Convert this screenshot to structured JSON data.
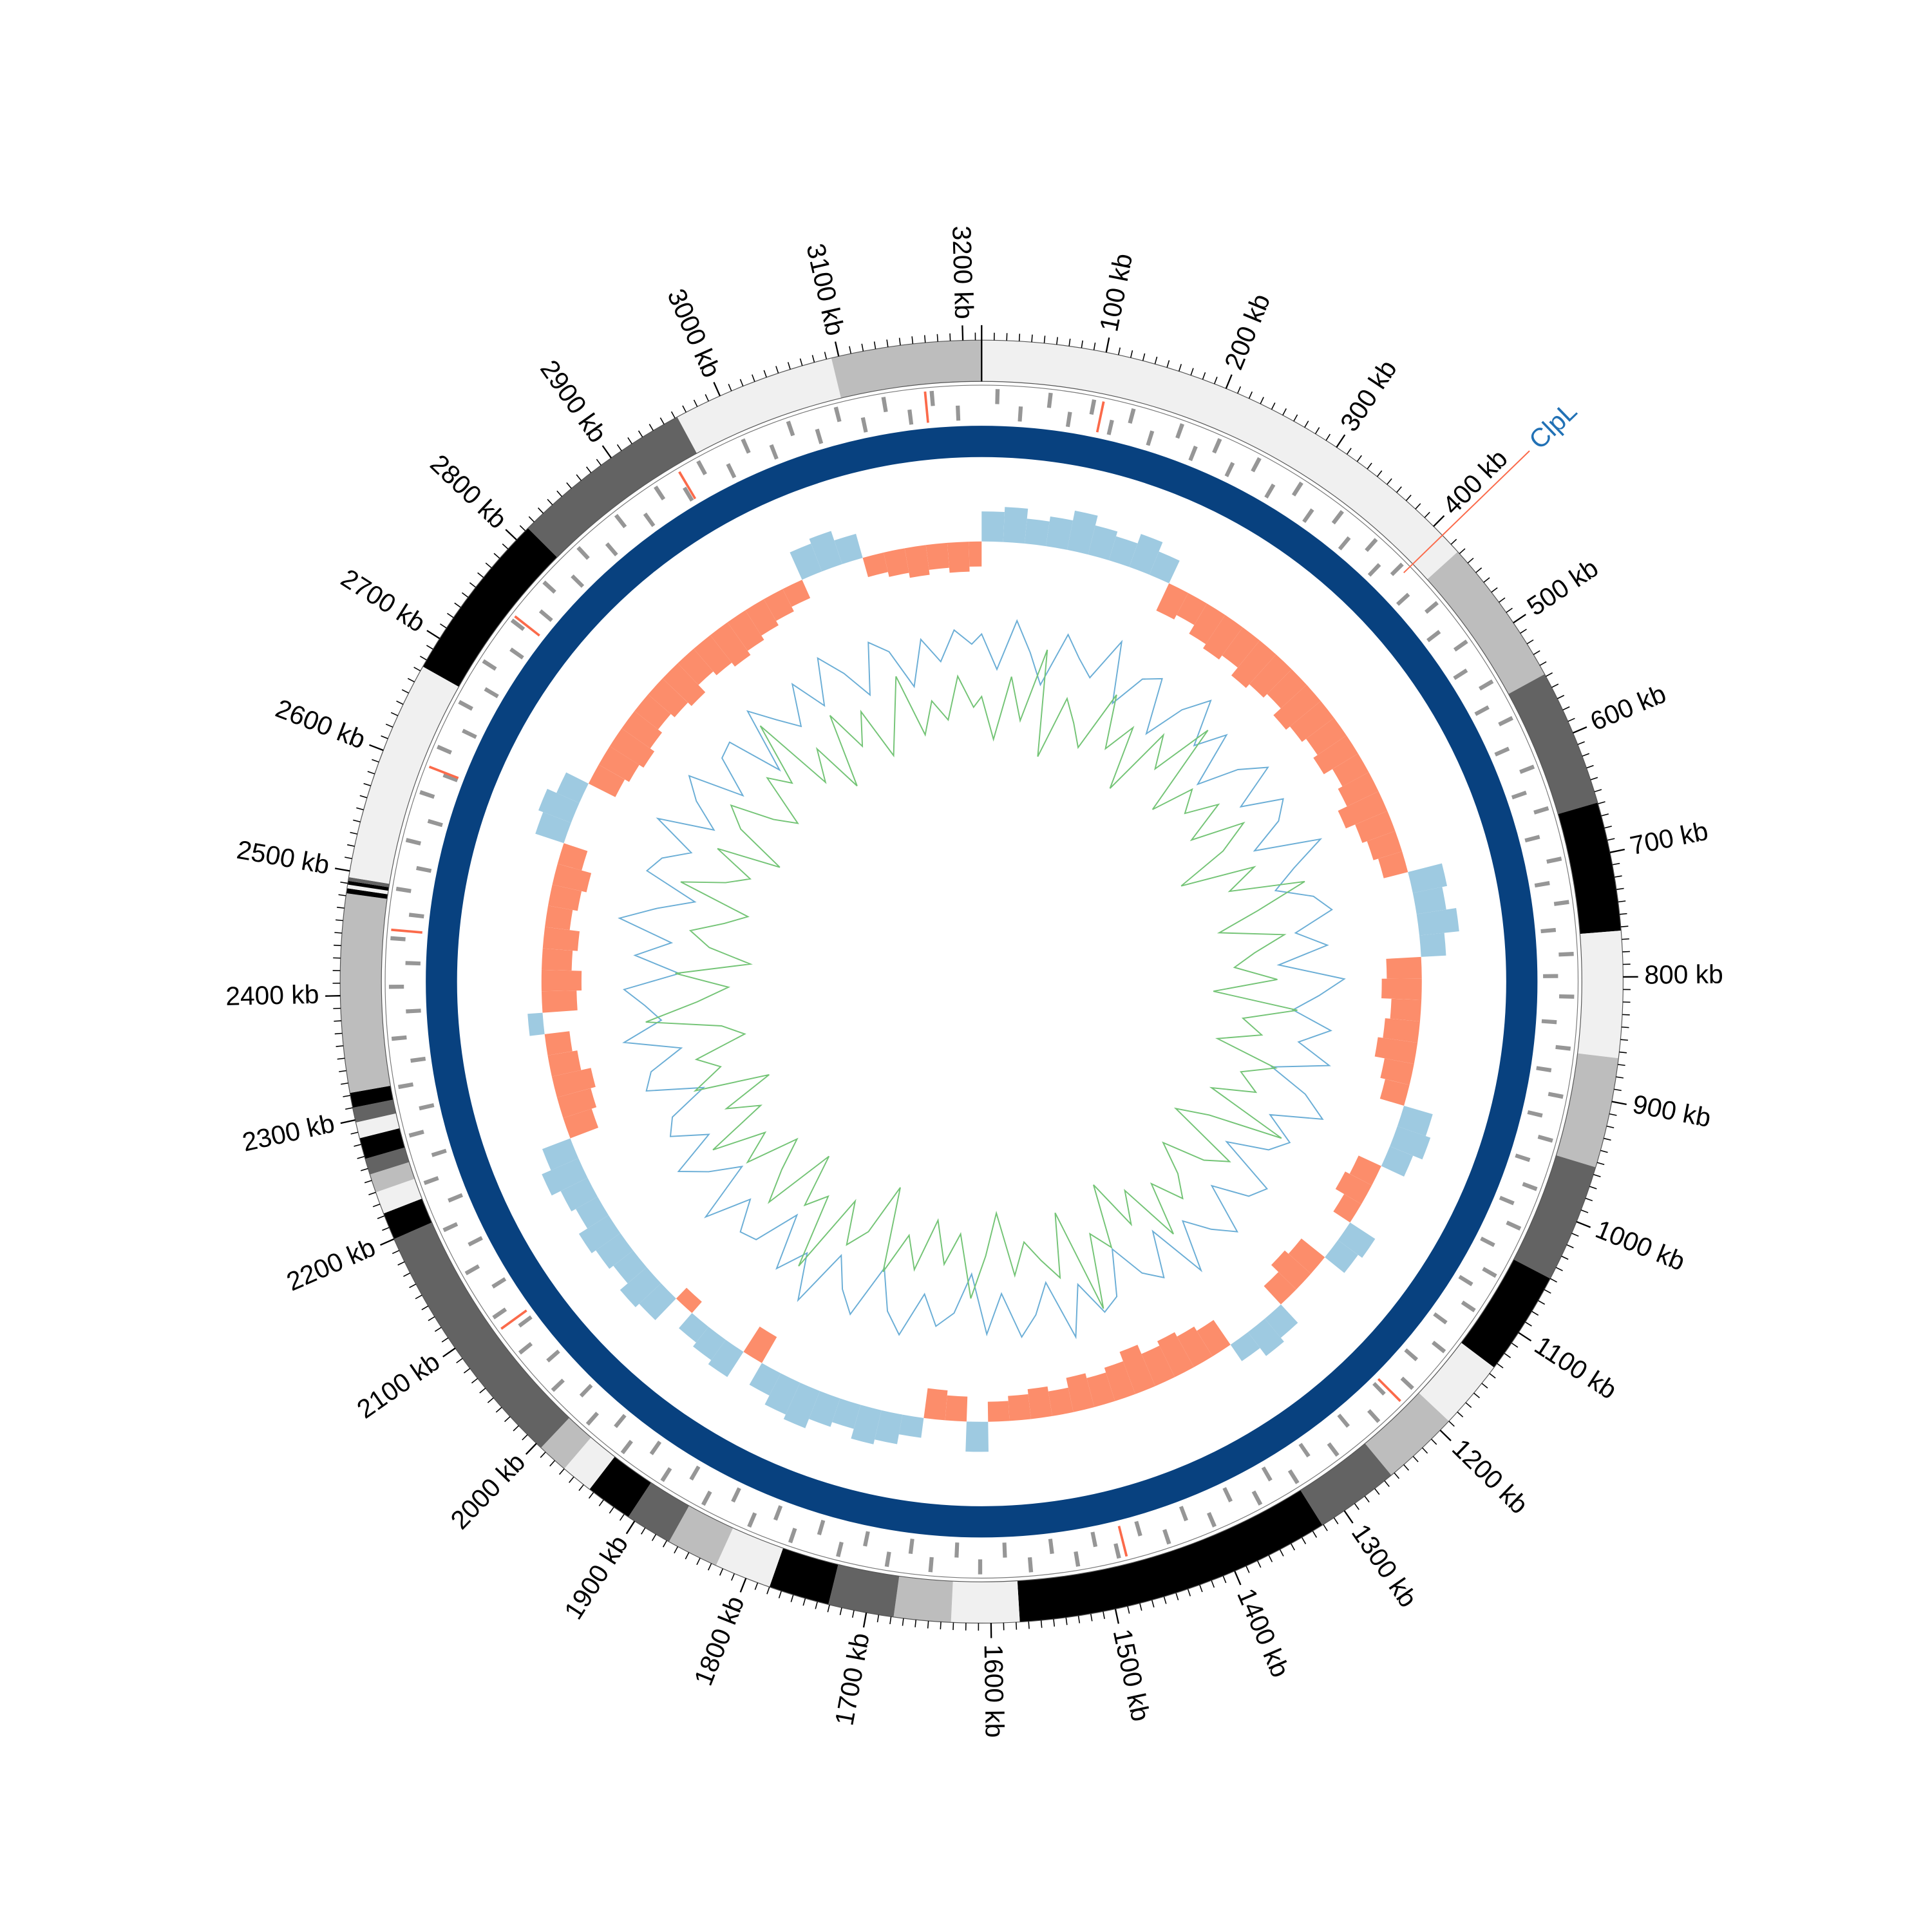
{
  "chart_data": {
    "type": "circular",
    "xlim": [
      0,
      3215
    ],
    "xticks": [
      {
        "value": 100,
        "label": "100 kb"
      },
      {
        "value": 200,
        "label": "200 kb"
      },
      {
        "value": 300,
        "label": "300 kb"
      },
      {
        "value": 400,
        "label": "400 kb"
      },
      {
        "value": 500,
        "label": "500 kb"
      },
      {
        "value": 600,
        "label": "600 kb"
      },
      {
        "value": 700,
        "label": "700 kb"
      },
      {
        "value": 800,
        "label": "800 kb"
      },
      {
        "value": 900,
        "label": "900 kb"
      },
      {
        "value": 1000,
        "label": "1000 kb"
      },
      {
        "value": 1100,
        "label": "1100 kb"
      },
      {
        "value": 1200,
        "label": "1200 kb"
      },
      {
        "value": 1300,
        "label": "1300 kb"
      },
      {
        "value": 1400,
        "label": "1400 kb"
      },
      {
        "value": 1500,
        "label": "1500 kb"
      },
      {
        "value": 1600,
        "label": "1600 kb"
      },
      {
        "value": 1700,
        "label": "1700 kb"
      },
      {
        "value": 1800,
        "label": "1800 kb"
      },
      {
        "value": 1900,
        "label": "1900 kb"
      },
      {
        "value": 2000,
        "label": "2000 kb"
      },
      {
        "value": 2100,
        "label": "2100 kb"
      },
      {
        "value": 2200,
        "label": "2200 kb"
      },
      {
        "value": 2300,
        "label": "2300 kb"
      },
      {
        "value": 2400,
        "label": "2400 kb"
      },
      {
        "value": 2500,
        "label": "2500 kb"
      },
      {
        "value": 2600,
        "label": "2600 kb"
      },
      {
        "value": 2700,
        "label": "2700 kb"
      },
      {
        "value": 2800,
        "label": "2800 kb"
      },
      {
        "value": 2900,
        "label": "2900 kb"
      },
      {
        "value": 3000,
        "label": "3000 kb"
      },
      {
        "value": 3100,
        "label": "3100 kb"
      },
      {
        "value": 3200,
        "label": "3200 kb"
      }
    ],
    "ideogram": [
      {
        "start": 0,
        "end": 428,
        "color": "#f0f0f0"
      },
      {
        "start": 428,
        "end": 548,
        "color": "#bdbdbd"
      },
      {
        "start": 548,
        "end": 659,
        "color": "#636363"
      },
      {
        "start": 659,
        "end": 763,
        "color": "#000000"
      },
      {
        "start": 763,
        "end": 865,
        "color": "#f0f0f0"
      },
      {
        "start": 865,
        "end": 954,
        "color": "#bdbdbd"
      },
      {
        "start": 954,
        "end": 1050,
        "color": "#636363"
      },
      {
        "start": 1050,
        "end": 1134,
        "color": "#000000"
      },
      {
        "start": 1134,
        "end": 1190,
        "color": "#f0f0f0"
      },
      {
        "start": 1190,
        "end": 1253,
        "color": "#bdbdbd"
      },
      {
        "start": 1253,
        "end": 1321,
        "color": "#636363"
      },
      {
        "start": 1321,
        "end": 1577,
        "color": "#000000"
      },
      {
        "start": 1577,
        "end": 1632,
        "color": "#f0f0f0"
      },
      {
        "start": 1632,
        "end": 1678,
        "color": "#bdbdbd"
      },
      {
        "start": 1678,
        "end": 1731,
        "color": "#636363"
      },
      {
        "start": 1731,
        "end": 1780,
        "color": "#000000"
      },
      {
        "start": 1780,
        "end": 1826,
        "color": "#f0f0f0"
      },
      {
        "start": 1826,
        "end": 1868,
        "color": "#bdbdbd"
      },
      {
        "start": 1868,
        "end": 1906,
        "color": "#636363"
      },
      {
        "start": 1906,
        "end": 1944,
        "color": "#000000"
      },
      {
        "start": 1944,
        "end": 1970,
        "color": "#f0f0f0"
      },
      {
        "start": 1970,
        "end": 1995,
        "color": "#bdbdbd"
      },
      {
        "start": 1995,
        "end": 2200,
        "color": "#636363"
      },
      {
        "start": 2200,
        "end": 2222,
        "color": "#000000"
      },
      {
        "start": 2222,
        "end": 2240,
        "color": "#f0f0f0"
      },
      {
        "start": 2240,
        "end": 2255,
        "color": "#bdbdbd"
      },
      {
        "start": 2255,
        "end": 2268,
        "color": "#636363"
      },
      {
        "start": 2268,
        "end": 2285,
        "color": "#000000"
      },
      {
        "start": 2285,
        "end": 2298,
        "color": "#f0f0f0"
      },
      {
        "start": 2298,
        "end": 2310,
        "color": "#636363"
      },
      {
        "start": 2310,
        "end": 2322,
        "color": "#000000"
      },
      {
        "start": 2322,
        "end": 2482,
        "color": "#bdbdbd"
      },
      {
        "start": 2482,
        "end": 2486,
        "color": "#000000"
      },
      {
        "start": 2486,
        "end": 2489,
        "color": "#f0f0f0"
      },
      {
        "start": 2489,
        "end": 2492,
        "color": "#000000"
      },
      {
        "start": 2492,
        "end": 2495,
        "color": "#636363"
      },
      {
        "start": 2495,
        "end": 2674,
        "color": "#f0f0f0"
      },
      {
        "start": 2674,
        "end": 2813,
        "color": "#000000"
      },
      {
        "start": 2813,
        "end": 2962,
        "color": "#636363"
      },
      {
        "start": 2962,
        "end": 3094,
        "color": "#f0f0f0"
      },
      {
        "start": 3094,
        "end": 3215,
        "color": "#bdbdbd"
      }
    ],
    "features": {
      "color": "#969696",
      "highlight_color": "#fb6a4a",
      "forward": [
        12,
        58,
        96,
        131,
        175,
        210,
        248,
        290,
        333,
        371,
        402,
        447,
        489,
        530,
        566,
        612,
        650,
        695,
        733,
        778,
        815,
        860,
        902,
        941,
        985,
        1022,
        1068,
        1103,
        1147,
        1189,
        1230,
        1276,
        1318,
        1355,
        1399,
        1441,
        1486,
        1522,
        1563,
        1607,
        1650,
        1688,
        1731,
        1774,
        1812,
        1856,
        1897,
        1939,
        1978,
        2020,
        2063,
        2101,
        2146,
        2188,
        2232,
        2275,
        2318,
        2360,
        2405,
        2447,
        2490,
        2533,
        2576,
        2618,
        2661,
        2702,
        2745,
        2788,
        2830,
        2873,
        2915,
        2958,
        3001,
        3043,
        3086,
        3128,
        3170
      ],
      "reverse": [
        33,
        77,
        115,
        152,
        193,
        229,
        270,
        311,
        352,
        388,
        425,
        468,
        510,
        548,
        589,
        631,
        672,
        714,
        756,
        797,
        838,
        881,
        922,
        963,
        1004,
        1045,
        1085,
        1126,
        1168,
        1210,
        1253,
        1297,
        1337,
        1377,
        1420,
        1463,
        1504,
        1543,
        1585,
        1628,
        1669,
        1710,
        1752,
        1793,
        1834,
        1876,
        1918,
        1958,
        1999,
        2042,
        2082,
        2124,
        2167,
        2210,
        2253,
        2296,
        2339,
        2383,
        2426,
        2469,
        2511,
        2554,
        2597,
        2640,
        2682,
        2724,
        2767,
        2809,
        2851,
        2894,
        2936,
        2980,
        3022,
        3065,
        3107,
        3149,
        3192
      ],
      "highlight": [
        105,
        1205,
        1480,
        2090,
        2455,
        2600,
        2750,
        2940,
        3165
      ]
    },
    "ring_color": "#08417f",
    "x": [
      0,
      25,
      50,
      75,
      100,
      125,
      150,
      175,
      200,
      225,
      250,
      275,
      300,
      325,
      350,
      375,
      400,
      425,
      450,
      475,
      500,
      525,
      550,
      575,
      600,
      625,
      650,
      675,
      700,
      725,
      750,
      775,
      800,
      825,
      850,
      875,
      900,
      925,
      950,
      975,
      1000,
      1025,
      1050,
      1075,
      1100,
      1125,
      1150,
      1175,
      1200,
      1225,
      1250,
      1275,
      1300,
      1325,
      1350,
      1375,
      1400,
      1425,
      1450,
      1475,
      1500,
      1525,
      1550,
      1575,
      1600,
      1625,
      1650,
      1675,
      1700,
      1725,
      1750,
      1775,
      1800,
      1825,
      1850,
      1875,
      1900,
      1925,
      1950,
      1975,
      2000,
      2025,
      2050,
      2075,
      2100,
      2125,
      2150,
      2175,
      2200,
      2225,
      2250,
      2275,
      2300,
      2325,
      2350,
      2375,
      2400,
      2425,
      2450,
      2475,
      2500,
      2525,
      2550,
      2575,
      2600,
      2625,
      2650,
      2675,
      2700,
      2725,
      2750,
      2775,
      2800,
      2825,
      2850,
      2875,
      2900,
      2925,
      2950,
      2975,
      3000,
      3025,
      3050,
      3075,
      3100,
      3125,
      3150,
      3175,
      3200
    ],
    "skew": {
      "positive_color": "#9ecae1",
      "negative_color": "#fc8d6b",
      "values": [
        0.6,
        0.7,
        0.5,
        0.6,
        0.8,
        0.6,
        0.5,
        0.7,
        0.5,
        -0.6,
        -0.5,
        -0.7,
        -0.8,
        -0.7,
        -0.9,
        -0.8,
        -0.7,
        -0.9,
        -0.8,
        -0.7,
        -0.8,
        -0.6,
        -0.7,
        -0.9,
        -0.7,
        -0.6,
        -0.5,
        0.7,
        0.6,
        0.8,
        0.5,
        -0.7,
        -0.8,
        -0.6,
        -0.7,
        -0.8,
        -0.6,
        -0.5,
        0.6,
        0.7,
        0.5,
        -0.5,
        -0.6,
        -0.4,
        0.6,
        0.5,
        -0.6,
        -0.7,
        -0.5,
        0.5,
        0.6,
        0.4,
        -0.6,
        -0.7,
        -0.8,
        -0.7,
        -0.9,
        -0.7,
        -0.6,
        -0.7,
        -0.5,
        -0.6,
        -0.5,
        -0.4,
        0.6,
        -0.5,
        -0.6,
        0.4,
        0.6,
        0.7,
        0.5,
        0.6,
        0.8,
        0.7,
        0.5,
        -0.6,
        0.6,
        0.5,
        0.4,
        -0.3,
        0.6,
        0.7,
        0.5,
        0.6,
        0.7,
        0.5,
        0.6,
        0.8,
        0.6,
        -0.6,
        -0.7,
        -0.8,
        -0.6,
        -0.5,
        0.3,
        -0.7,
        -0.8,
        -0.6,
        -0.7,
        -0.5,
        -0.6,
        -0.7,
        -0.5,
        0.6,
        0.7,
        0.5,
        -0.6,
        -0.7,
        -0.8,
        -0.7,
        -0.6,
        -0.7,
        -0.8,
        -0.6,
        -0.7,
        -0.8,
        -0.7,
        -0.6,
        -0.5,
        -0.4,
        0.6,
        0.7,
        0.5,
        -0.4,
        -0.5,
        -0.6,
        -0.5,
        -0.6,
        -0.5
      ]
    },
    "series": [
      {
        "color": "#6baed6",
        "values": [
          0.4,
          -0.3,
          0.7,
          0.1,
          -0.5,
          0.6,
          0.2,
          -0.1,
          0.8,
          -0.4,
          0.3,
          0.5,
          -0.6,
          0.2,
          0.7,
          -0.2,
          0.4,
          -0.7,
          0.1,
          0.6,
          -0.3,
          0.5,
          0.2,
          -0.5,
          0.8,
          0.1,
          -0.4,
          0.3,
          0.6,
          -0.2,
          0.4,
          -0.6,
          0.7,
          0.2,
          -0.3,
          0.5,
          -0.1,
          0.6,
          -0.5,
          0.3,
          0.8,
          -0.2,
          0.4,
          0.1,
          -0.7,
          0.5,
          0.3,
          -0.4,
          0.6,
          0.2,
          -0.3,
          0.7,
          -0.5,
          0.4,
          0.1,
          -0.6,
          0.3,
          0.5,
          -0.2,
          0.8,
          -0.4,
          0.2,
          0.6,
          -0.3,
          0.5,
          -0.7,
          0.1,
          0.4,
          -0.2,
          0.7,
          0.3,
          -0.5,
          0.6,
          0.2,
          -0.4,
          0.8,
          -0.1,
          0.5,
          -0.6,
          0.3,
          0.4,
          -0.2,
          0.7,
          -0.5,
          0.1,
          0.6,
          -0.3,
          0.4,
          0.2,
          -0.6,
          0.5,
          0.3,
          -0.4,
          0.7,
          -0.1,
          0.2,
          0.6,
          -0.5,
          0.4,
          -0.3,
          0.8,
          0.1,
          -0.6,
          0.5,
          0.3,
          -0.2,
          0.7,
          -0.4,
          0.2,
          0.6,
          -0.5,
          0.3,
          0.4,
          -0.7,
          0.6,
          0.1,
          -0.3,
          0.5,
          -0.2,
          0.7,
          0.2,
          -0.4,
          0.6,
          0.3,
          -0.5,
          0.4,
          -0.1,
          0.5,
          0.2
        ]
      },
      {
        "color": "#74c476",
        "values": [
          -0.4,
          -0.8,
          -0.2,
          -0.6,
          0.1,
          -0.9,
          -0.3,
          -0.5,
          -0.7,
          -0.1,
          -0.6,
          -0.3,
          -0.9,
          -0.2,
          -0.5,
          0.1,
          -0.8,
          -0.4,
          -0.6,
          -0.3,
          -0.7,
          -0.2,
          -0.5,
          -1.0,
          -0.3,
          -0.6,
          0.1,
          -0.4,
          -0.8,
          -0.2,
          -0.5,
          -0.7,
          -0.3,
          -0.9,
          -0.1,
          -0.6,
          -0.4,
          -0.8,
          -0.2,
          -0.5,
          -0.3,
          -0.7,
          0.1,
          -0.6,
          -0.9,
          -0.2,
          -0.4,
          -0.8,
          -0.5,
          -0.3,
          -0.6,
          -0.1,
          -0.7,
          -0.4,
          -0.9,
          -0.3,
          -0.5,
          0.2,
          -0.8,
          -0.2,
          -0.4,
          -0.6,
          -0.3,
          -0.9,
          -0.5,
          -0.1,
          -0.7,
          -0.4,
          -0.8,
          -0.3,
          -0.6,
          -0.2,
          -1.0,
          -0.5,
          -0.3,
          -0.7,
          0.1,
          -0.6,
          -0.4,
          -0.9,
          -0.2,
          -0.5,
          -0.8,
          -0.3,
          -0.6,
          -0.1,
          -0.7,
          -0.4,
          -0.9,
          -0.2,
          -0.5,
          -0.3,
          -0.8,
          -0.6,
          0.1,
          -0.4,
          -0.7,
          -0.2,
          -0.9,
          -0.5,
          -0.3,
          -0.6,
          -0.8,
          -0.1,
          -0.5,
          -0.7,
          -0.3,
          -0.9,
          -0.4,
          -0.2,
          -0.6,
          -0.8,
          -0.3,
          -0.5,
          0.1,
          -0.7,
          -0.4,
          -0.9,
          -0.2,
          -0.6,
          -0.3,
          -0.8,
          -0.5,
          -0.1,
          -0.7,
          -0.4,
          -0.6,
          -0.2,
          -0.5
        ]
      }
    ],
    "annotations": [
      {
        "position": 410,
        "label": "ClpL",
        "color": "#2171b5",
        "line_color": "#fb6a4a"
      }
    ]
  }
}
